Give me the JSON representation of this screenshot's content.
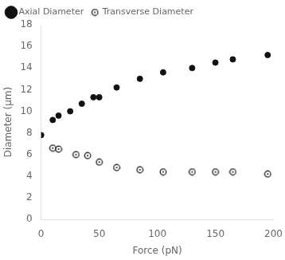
{
  "chart_data": {
    "type": "scatter",
    "xlabel": "Force (pN)",
    "ylabel": "Diameter (μm)",
    "series": [
      {
        "name": "Axial Diameter",
        "color": "#111111",
        "marker": "circle",
        "x": [
          0,
          10,
          15,
          25,
          35,
          45,
          50,
          65,
          85,
          105,
          130,
          150,
          165,
          195
        ],
        "values": [
          7.8,
          9.2,
          9.6,
          10.0,
          10.7,
          11.3,
          11.3,
          12.2,
          13.0,
          13.6,
          14.0,
          14.5,
          14.8,
          15.2
        ]
      },
      {
        "name": "Transverse Diameter",
        "color": "#111111",
        "marker": "open_circle_dot",
        "x": [
          10,
          15,
          30,
          40,
          50,
          65,
          85,
          105,
          130,
          150,
          165,
          195
        ],
        "values": [
          6.6,
          6.5,
          6.0,
          5.9,
          5.3,
          4.8,
          4.6,
          4.4,
          4.4,
          4.4,
          4.4,
          4.2
        ]
      }
    ],
    "xlim": [
      0,
      200
    ],
    "ylim": [
      0,
      18
    ],
    "xticks": [
      0,
      50,
      100,
      150,
      200
    ],
    "yticks": [
      0,
      2,
      4,
      6,
      8,
      10,
      12,
      14,
      16,
      18
    ],
    "grid": false,
    "legend": "upper left"
  }
}
